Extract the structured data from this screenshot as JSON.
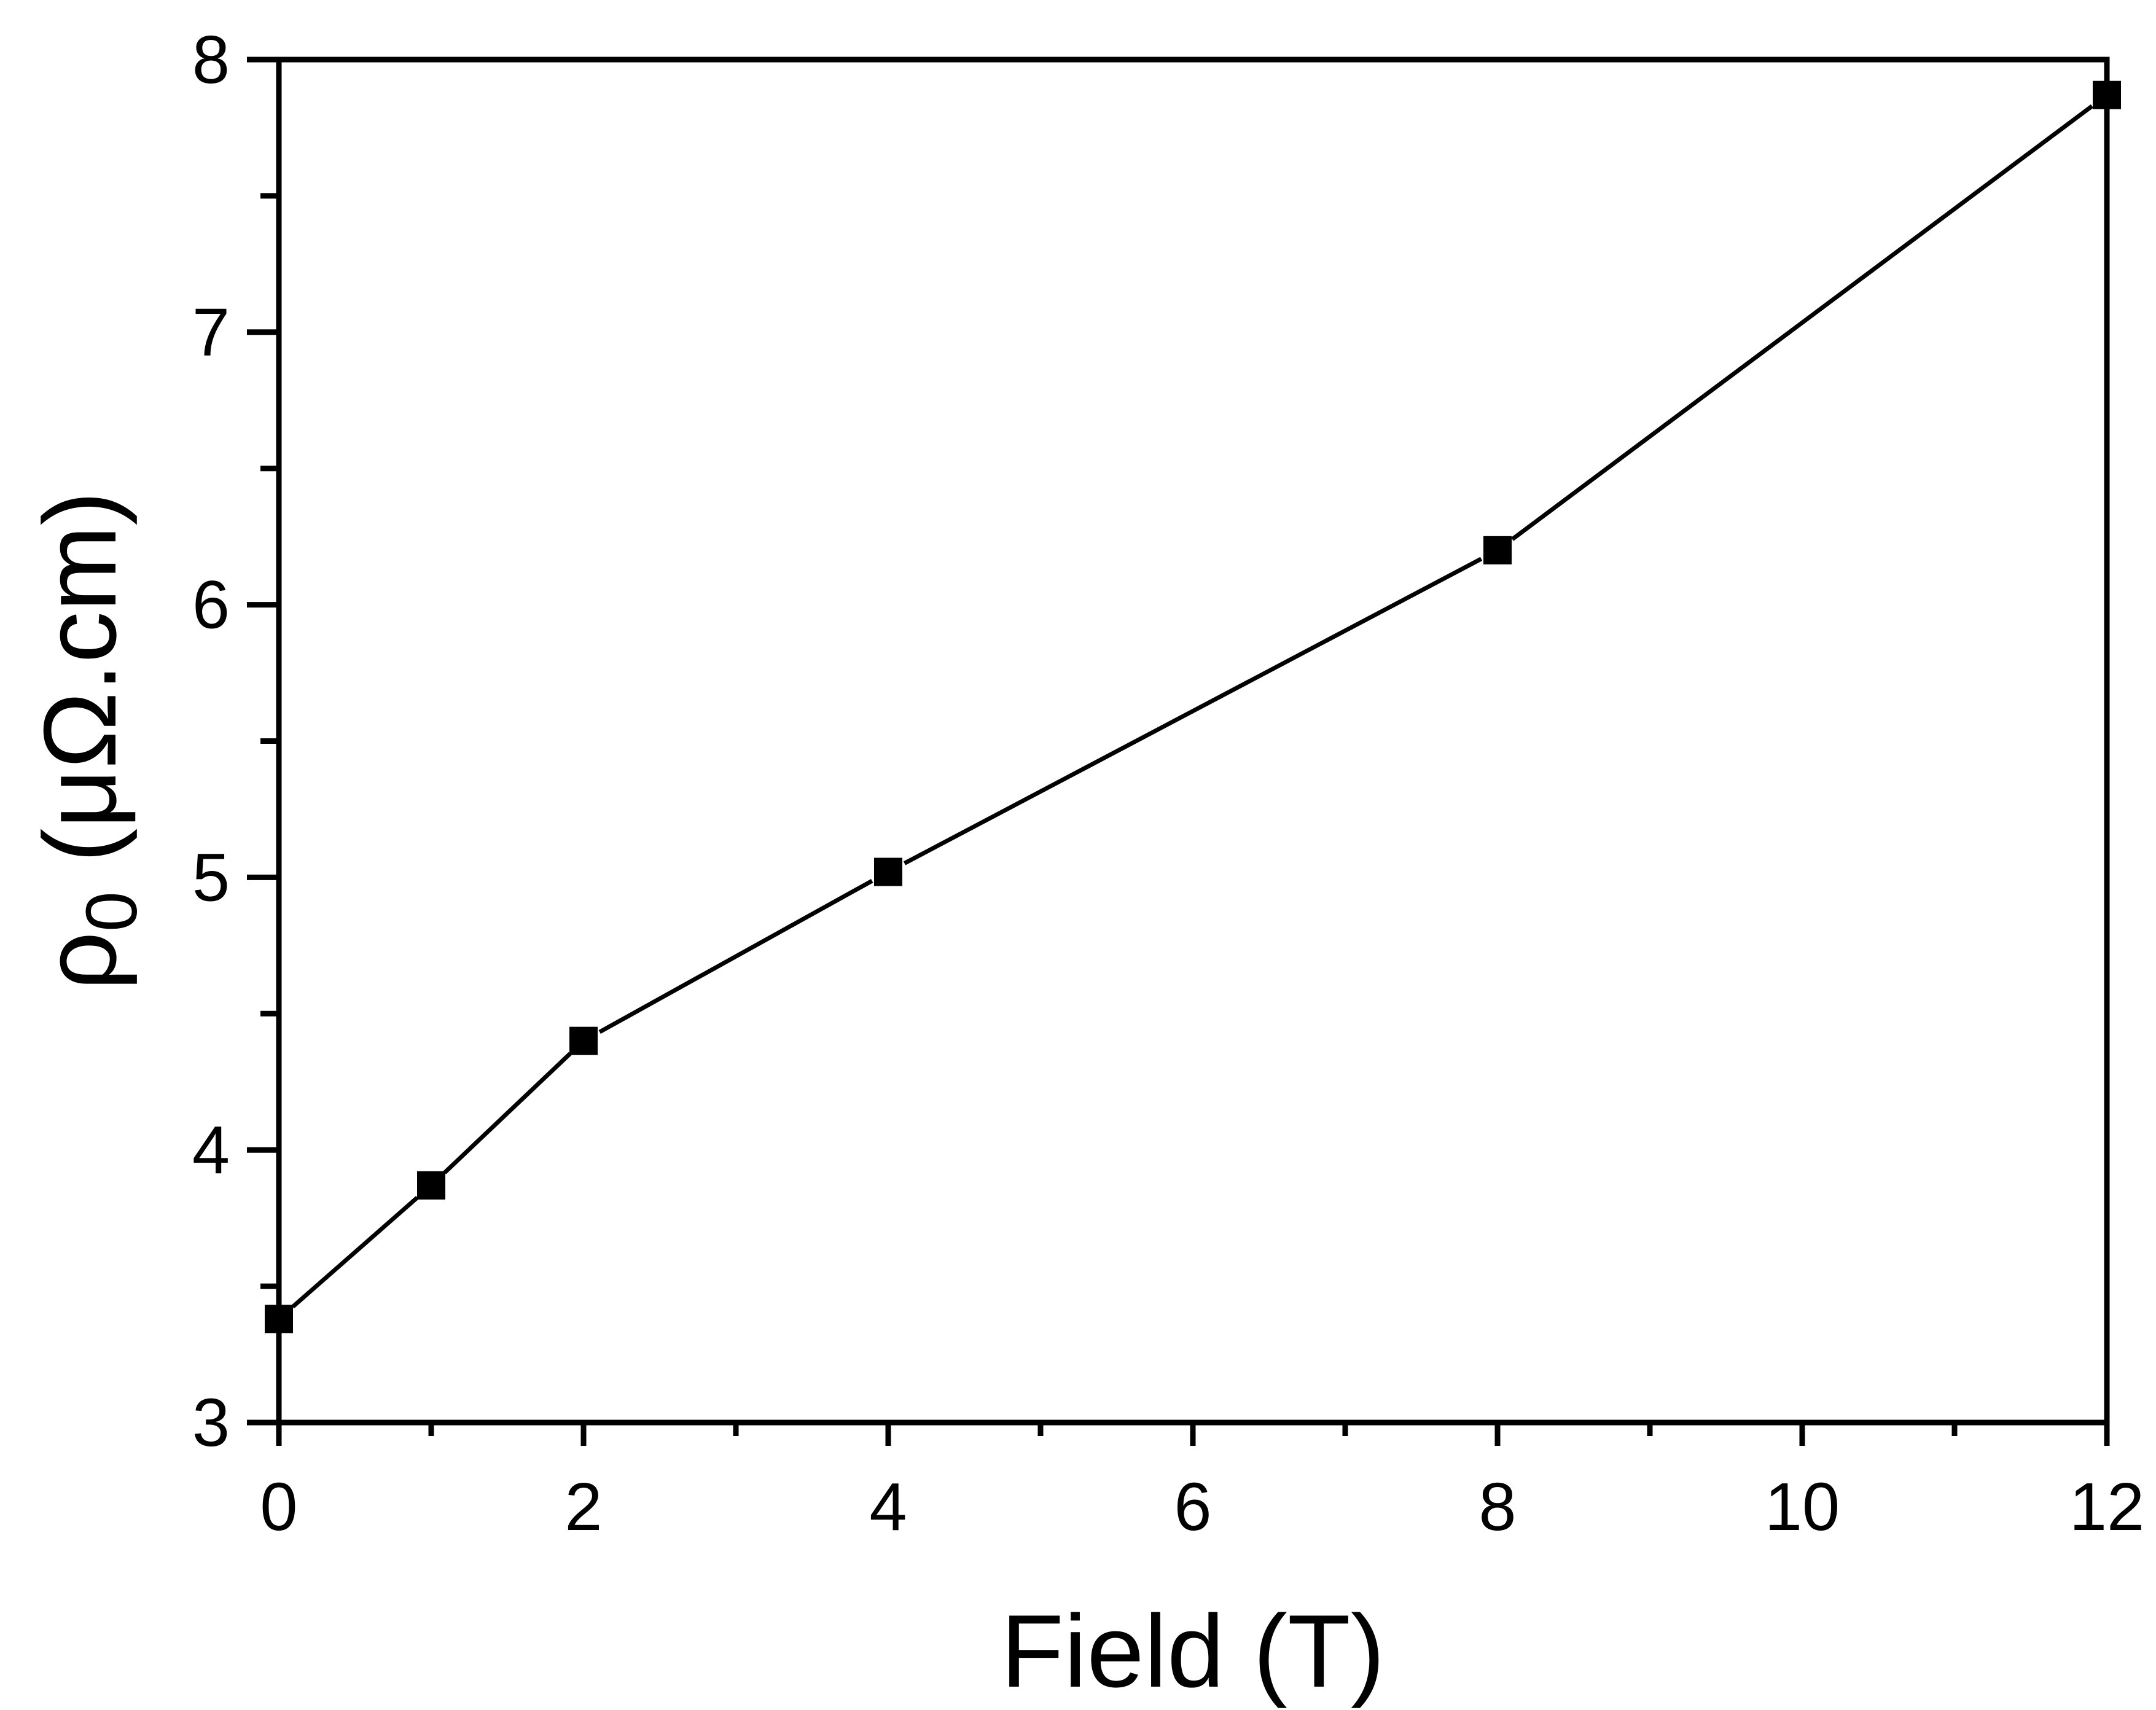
{
  "chart_data": {
    "type": "line",
    "title": "",
    "xlabel": "Field (T)",
    "ylabel": {
      "symbol": "ρ",
      "subscript": "0",
      "units": " (μΩ.cm)"
    },
    "xlim": [
      0,
      12
    ],
    "ylim": [
      3,
      8
    ],
    "x_ticks": [
      0,
      2,
      4,
      6,
      8,
      10,
      12
    ],
    "x_minor_ticks": [
      1,
      3,
      5,
      7,
      9,
      11
    ],
    "y_ticks": [
      3,
      4,
      5,
      6,
      7,
      8
    ],
    "y_minor_ticks": [
      3.5,
      4.5,
      5.5,
      6.5,
      7.5
    ],
    "grid": false,
    "legend": "none",
    "series": [
      {
        "marker": "square",
        "color": "#000000",
        "x": [
          0,
          1,
          2,
          4,
          8,
          12
        ],
        "values": [
          3.38,
          3.87,
          4.4,
          5.02,
          6.2,
          7.87
        ]
      }
    ]
  }
}
